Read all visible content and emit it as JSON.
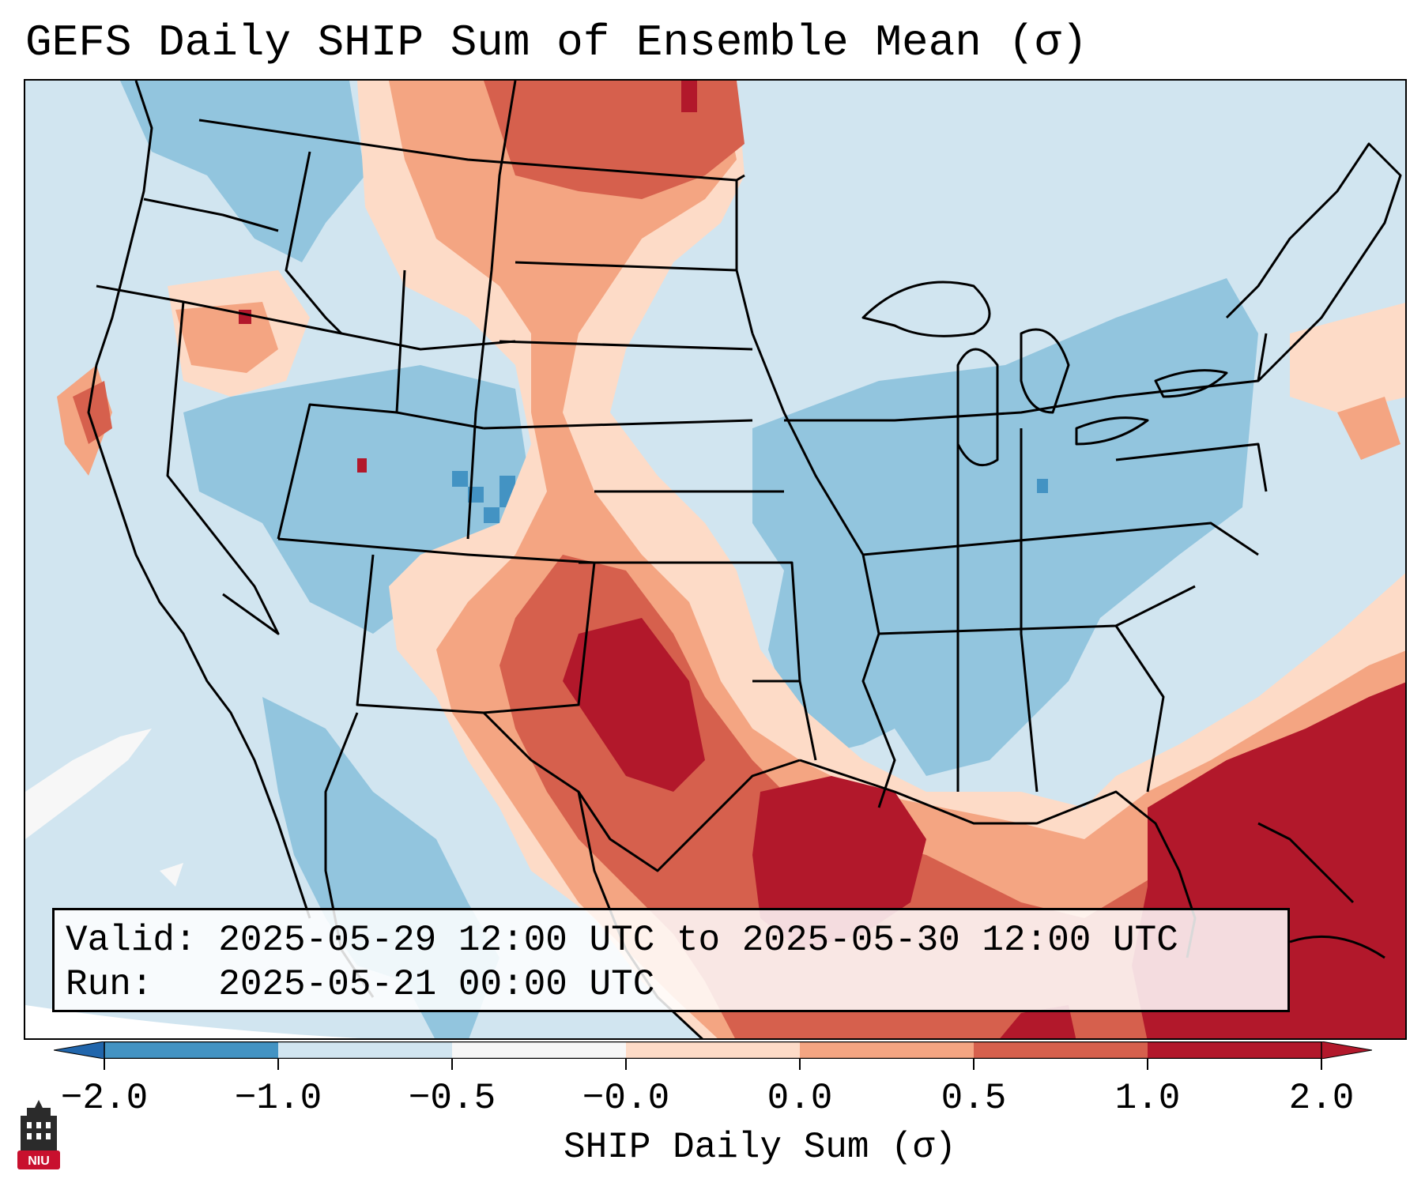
{
  "title": "GEFS Daily SHIP Sum of Ensemble Mean (σ)",
  "info": {
    "valid_line": "Valid: 2025-05-29 12:00 UTC to 2025-05-30 12:00 UTC",
    "run_line": "Run:   2025-05-21 00:00 UTC"
  },
  "colorbar": {
    "label": "SHIP Daily Sum (σ)",
    "ticks": [
      "−2.0",
      "−1.0",
      "−0.5",
      "−0.0",
      "0.0",
      "0.5",
      "1.0",
      "2.0"
    ],
    "colors": [
      "#4393c3",
      "#92c5de",
      "#d1e5f0",
      "#f7f7f7",
      "#fddbc7",
      "#f4a582",
      "#d6604d",
      "#b2182b"
    ],
    "extend_low_color": "#2166ac",
    "extend_high_color": "#b2182b"
  },
  "logo": {
    "text": "NIU",
    "color": "#c8102e"
  }
}
